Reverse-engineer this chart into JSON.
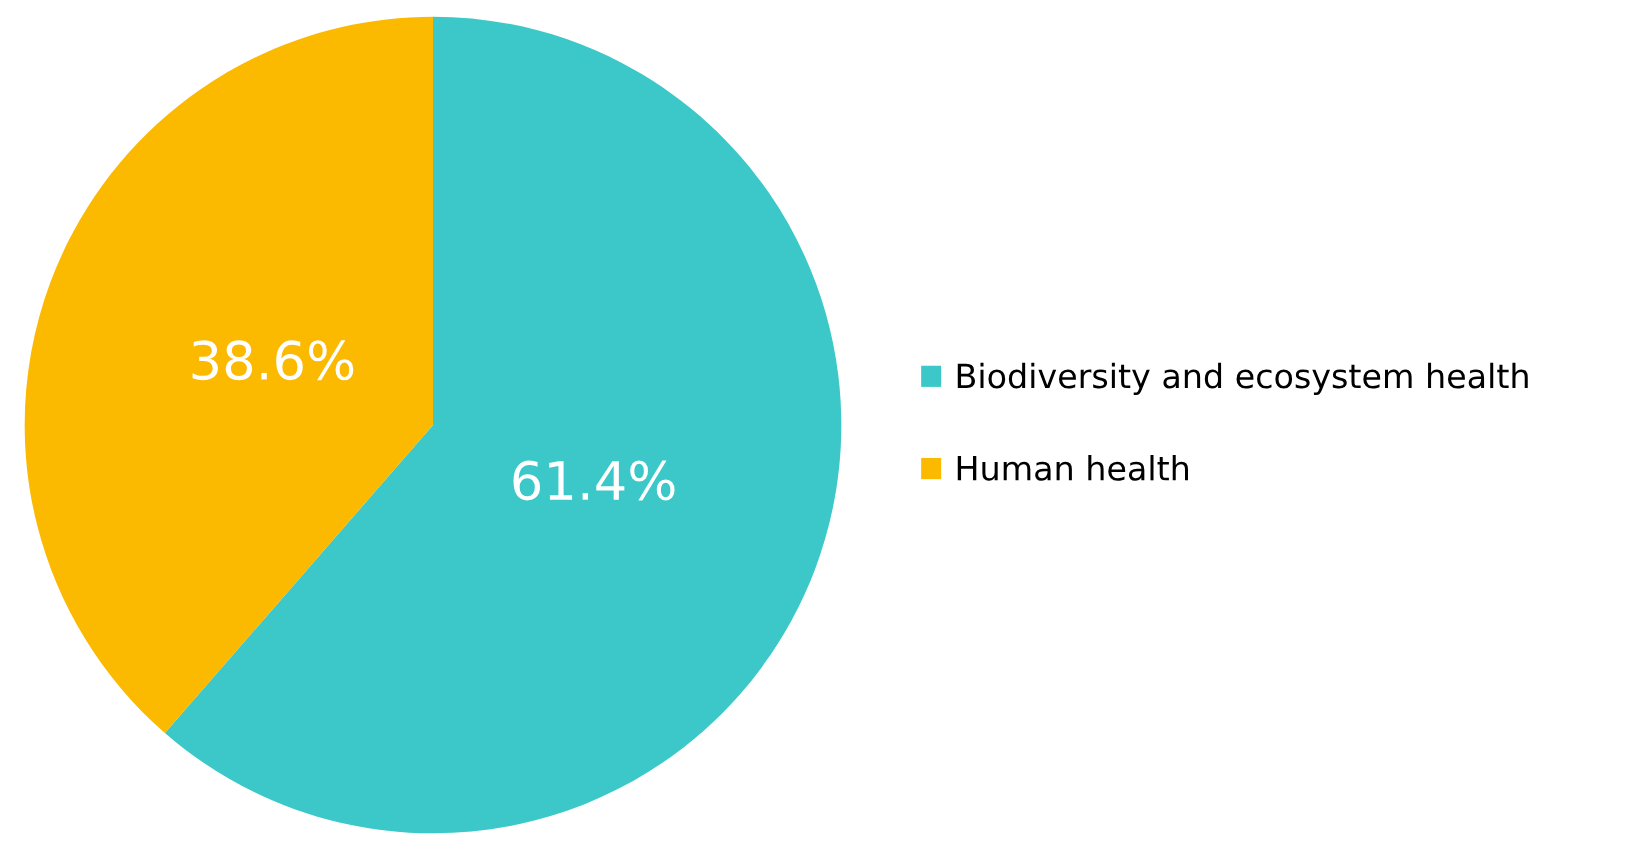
{
  "chart_data": {
    "type": "pie",
    "categories": [
      "Biodiversity and ecosystem health",
      "Human health"
    ],
    "values": [
      61.4,
      38.6
    ],
    "colors": [
      "#3cc8c8",
      "#fbb900"
    ],
    "value_labels": [
      "61.4%",
      "38.6%"
    ],
    "legend": "right"
  }
}
